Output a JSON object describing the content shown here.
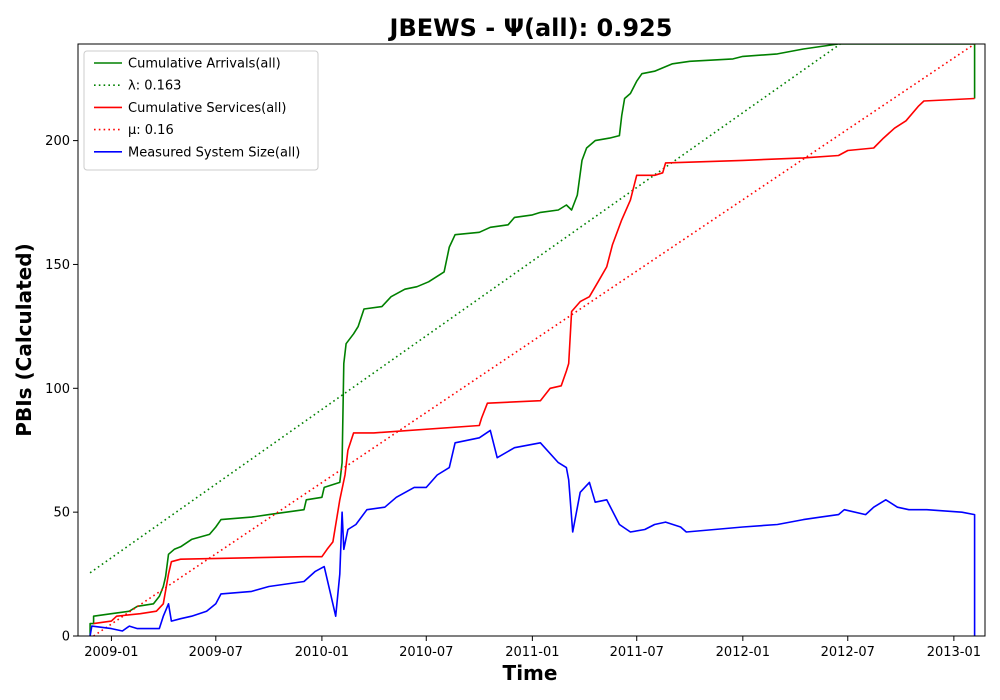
{
  "chart_data": {
    "type": "line",
    "title": "JBEWS -  Ψ(all): 0.925",
    "xlabel": "Time",
    "ylabel": "PBIs (Calculated)",
    "xlim": [
      "2008-11-04",
      "2013-02-24"
    ],
    "ylim": [
      0,
      239
    ],
    "x_ticks": [
      "2009-01",
      "2009-07",
      "2010-01",
      "2010-07",
      "2011-01",
      "2011-07",
      "2012-01",
      "2012-07",
      "2013-01"
    ],
    "y_ticks": [
      0,
      50,
      100,
      150,
      200
    ],
    "grid": false,
    "legend_position": "top-left",
    "series": [
      {
        "name": "Cumulative Arrivals(all)",
        "color": "#008000",
        "style": "solid",
        "points": [
          [
            "2008-11-25",
            0
          ],
          [
            "2008-11-25",
            5
          ],
          [
            "2008-12-01",
            5
          ],
          [
            "2008-12-01",
            8
          ],
          [
            "2009-01-01",
            9
          ],
          [
            "2009-02-01",
            10
          ],
          [
            "2009-02-15",
            12
          ],
          [
            "2009-03-15",
            13
          ],
          [
            "2009-03-25",
            16
          ],
          [
            "2009-04-01",
            20
          ],
          [
            "2009-04-05",
            24
          ],
          [
            "2009-04-10",
            33
          ],
          [
            "2009-04-20",
            35
          ],
          [
            "2009-05-01",
            36
          ],
          [
            "2009-05-20",
            39
          ],
          [
            "2009-06-20",
            41
          ],
          [
            "2009-07-01",
            44
          ],
          [
            "2009-07-10",
            47
          ],
          [
            "2009-09-01",
            48
          ],
          [
            "2009-10-01",
            49
          ],
          [
            "2009-12-01",
            51
          ],
          [
            "2009-12-05",
            55
          ],
          [
            "2010-01-01",
            56
          ],
          [
            "2010-01-05",
            60
          ],
          [
            "2010-02-01",
            62
          ],
          [
            "2010-02-05",
            70
          ],
          [
            "2010-02-08",
            110
          ],
          [
            "2010-02-12",
            118
          ],
          [
            "2010-02-25",
            122
          ],
          [
            "2010-03-05",
            125
          ],
          [
            "2010-03-15",
            132
          ],
          [
            "2010-04-15",
            133
          ],
          [
            "2010-05-01",
            137
          ],
          [
            "2010-05-25",
            140
          ],
          [
            "2010-06-15",
            141
          ],
          [
            "2010-07-05",
            143
          ],
          [
            "2010-08-01",
            147
          ],
          [
            "2010-08-10",
            157
          ],
          [
            "2010-08-20",
            162
          ],
          [
            "2010-10-01",
            163
          ],
          [
            "2010-10-20",
            165
          ],
          [
            "2010-11-20",
            166
          ],
          [
            "2010-12-01",
            169
          ],
          [
            "2011-01-01",
            170
          ],
          [
            "2011-01-15",
            171
          ],
          [
            "2011-02-15",
            172
          ],
          [
            "2011-03-01",
            174
          ],
          [
            "2011-03-10",
            172
          ],
          [
            "2011-03-20",
            178
          ],
          [
            "2011-03-28",
            192
          ],
          [
            "2011-04-05",
            197
          ],
          [
            "2011-04-20",
            200
          ],
          [
            "2011-05-15",
            201
          ],
          [
            "2011-06-01",
            202
          ],
          [
            "2011-06-05",
            210
          ],
          [
            "2011-06-10",
            217
          ],
          [
            "2011-06-20",
            219
          ],
          [
            "2011-07-01",
            224
          ],
          [
            "2011-07-10",
            227
          ],
          [
            "2011-08-01",
            228
          ],
          [
            "2011-09-01",
            231
          ],
          [
            "2011-10-01",
            232
          ],
          [
            "2011-12-15",
            233
          ],
          [
            "2012-01-01",
            234
          ],
          [
            "2012-03-01",
            235
          ],
          [
            "2012-04-15",
            237
          ],
          [
            "2012-05-15",
            238
          ],
          [
            "2012-06-15",
            239
          ],
          [
            "2013-02-06",
            239
          ],
          [
            "2013-02-06",
            217
          ]
        ]
      },
      {
        "name": "λ: 0.163",
        "color": "#008000",
        "style": "dotted",
        "points": [
          [
            "2008-11-25",
            25.5
          ],
          [
            "2012-06-18",
            239
          ]
        ]
      },
      {
        "name": "Cumulative Services(all)",
        "color": "#ff0000",
        "style": "solid",
        "points": [
          [
            "2008-12-01",
            5
          ],
          [
            "2009-01-01",
            6
          ],
          [
            "2009-01-10",
            8
          ],
          [
            "2009-02-20",
            9
          ],
          [
            "2009-03-20",
            10
          ],
          [
            "2009-04-01",
            13
          ],
          [
            "2009-04-10",
            25
          ],
          [
            "2009-04-15",
            30
          ],
          [
            "2009-05-01",
            31
          ],
          [
            "2009-12-01",
            32
          ],
          [
            "2010-01-01",
            32
          ],
          [
            "2010-01-10",
            35
          ],
          [
            "2010-01-20",
            38
          ],
          [
            "2010-02-01",
            55
          ],
          [
            "2010-02-10",
            65
          ],
          [
            "2010-02-15",
            75
          ],
          [
            "2010-02-25",
            82
          ],
          [
            "2010-04-01",
            82
          ],
          [
            "2010-10-01",
            85
          ],
          [
            "2010-10-05",
            88
          ],
          [
            "2010-10-15",
            94
          ],
          [
            "2011-01-15",
            95
          ],
          [
            "2011-02-01",
            100
          ],
          [
            "2011-02-20",
            101
          ],
          [
            "2011-03-01",
            107
          ],
          [
            "2011-03-05",
            110
          ],
          [
            "2011-03-10",
            131
          ],
          [
            "2011-03-25",
            135
          ],
          [
            "2011-04-10",
            137
          ],
          [
            "2011-04-25",
            143
          ],
          [
            "2011-05-10",
            149
          ],
          [
            "2011-05-20",
            158
          ],
          [
            "2011-06-05",
            168
          ],
          [
            "2011-06-20",
            176
          ],
          [
            "2011-07-01",
            186
          ],
          [
            "2011-08-01",
            186
          ],
          [
            "2011-08-15",
            187
          ],
          [
            "2011-08-20",
            191
          ],
          [
            "2012-01-01",
            192
          ],
          [
            "2012-04-15",
            193
          ],
          [
            "2012-06-15",
            194
          ],
          [
            "2012-07-01",
            196
          ],
          [
            "2012-08-15",
            197
          ],
          [
            "2012-09-01",
            201
          ],
          [
            "2012-09-20",
            205
          ],
          [
            "2012-10-10",
            208
          ],
          [
            "2012-11-01",
            214
          ],
          [
            "2012-11-10",
            216
          ],
          [
            "2013-02-06",
            217
          ]
        ]
      },
      {
        "name": "μ: 0.16",
        "color": "#ff0000",
        "style": "dotted",
        "points": [
          [
            "2008-12-01",
            0
          ],
          [
            "2013-02-06",
            239
          ]
        ]
      },
      {
        "name": "Measured System Size(all)",
        "color": "#0000ff",
        "style": "solid",
        "points": [
          [
            "2008-11-25",
            0
          ],
          [
            "2008-11-28",
            4
          ],
          [
            "2009-01-01",
            3
          ],
          [
            "2009-01-20",
            2
          ],
          [
            "2009-02-01",
            4
          ],
          [
            "2009-02-15",
            3
          ],
          [
            "2009-03-25",
            3
          ],
          [
            "2009-04-01",
            8
          ],
          [
            "2009-04-10",
            13
          ],
          [
            "2009-04-15",
            6
          ],
          [
            "2009-05-01",
            7
          ],
          [
            "2009-05-20",
            8
          ],
          [
            "2009-06-15",
            10
          ],
          [
            "2009-07-01",
            13
          ],
          [
            "2009-07-10",
            17
          ],
          [
            "2009-09-01",
            18
          ],
          [
            "2009-10-01",
            20
          ],
          [
            "2009-12-01",
            22
          ],
          [
            "2009-12-20",
            26
          ],
          [
            "2010-01-05",
            28
          ],
          [
            "2010-01-15",
            18
          ],
          [
            "2010-01-25",
            8
          ],
          [
            "2010-02-01",
            25
          ],
          [
            "2010-02-05",
            50
          ],
          [
            "2010-02-08",
            35
          ],
          [
            "2010-02-15",
            43
          ],
          [
            "2010-03-01",
            45
          ],
          [
            "2010-03-20",
            51
          ],
          [
            "2010-04-20",
            52
          ],
          [
            "2010-05-10",
            56
          ],
          [
            "2010-06-10",
            60
          ],
          [
            "2010-07-01",
            60
          ],
          [
            "2010-07-20",
            65
          ],
          [
            "2010-08-10",
            68
          ],
          [
            "2010-08-20",
            78
          ],
          [
            "2010-10-01",
            80
          ],
          [
            "2010-10-20",
            83
          ],
          [
            "2010-11-01",
            72
          ],
          [
            "2010-12-01",
            76
          ],
          [
            "2011-01-15",
            78
          ],
          [
            "2011-02-15",
            70
          ],
          [
            "2011-03-01",
            68
          ],
          [
            "2011-03-05",
            63
          ],
          [
            "2011-03-12",
            42
          ],
          [
            "2011-03-25",
            58
          ],
          [
            "2011-04-10",
            62
          ],
          [
            "2011-04-20",
            54
          ],
          [
            "2011-05-10",
            55
          ],
          [
            "2011-06-01",
            45
          ],
          [
            "2011-06-20",
            42
          ],
          [
            "2011-07-15",
            43
          ],
          [
            "2011-08-01",
            45
          ],
          [
            "2011-08-20",
            46
          ],
          [
            "2011-09-15",
            44
          ],
          [
            "2011-09-25",
            42
          ],
          [
            "2012-01-01",
            44
          ],
          [
            "2012-03-01",
            45
          ],
          [
            "2012-04-15",
            47
          ],
          [
            "2012-05-15",
            48
          ],
          [
            "2012-06-15",
            49
          ],
          [
            "2012-06-25",
            51
          ],
          [
            "2012-08-01",
            49
          ],
          [
            "2012-08-15",
            52
          ],
          [
            "2012-09-05",
            55
          ],
          [
            "2012-09-25",
            52
          ],
          [
            "2012-10-15",
            51
          ],
          [
            "2012-11-15",
            51
          ],
          [
            "2013-01-15",
            50
          ],
          [
            "2013-02-06",
            49
          ],
          [
            "2013-02-06",
            0
          ]
        ]
      }
    ]
  }
}
